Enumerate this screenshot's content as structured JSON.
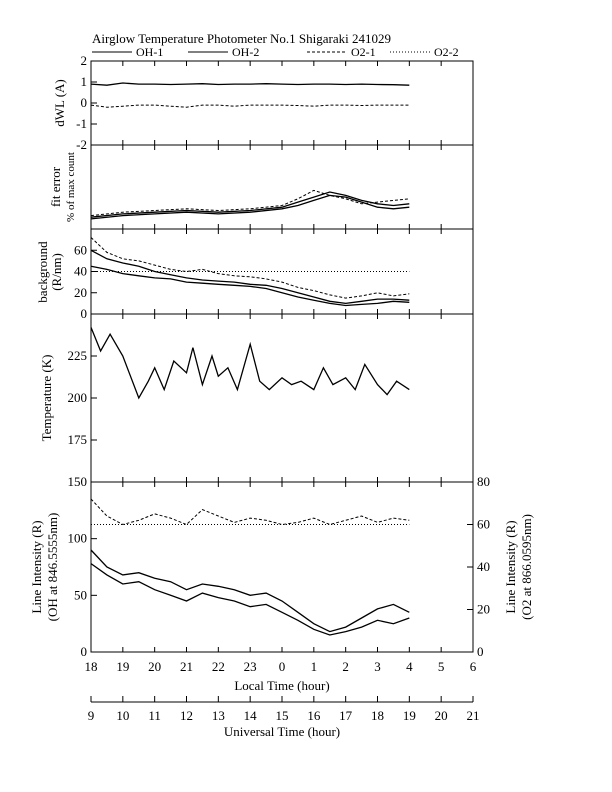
{
  "title": "Airglow Temperature Photometer No.1  Shigaraki  241029",
  "legend": [
    {
      "name": "OH-1",
      "dash": ""
    },
    {
      "name": "OH-2",
      "dash": ""
    },
    {
      "name": "O2-1",
      "dash": "3,2"
    },
    {
      "name": "O2-2",
      "dash": "1,2"
    }
  ],
  "chart_data": [
    {
      "type": "line",
      "panel": "dwl",
      "ylabel": "dWL (A)",
      "ylim": [
        -2,
        2
      ],
      "yticks": [
        -2,
        -1,
        0,
        1,
        2
      ],
      "series": [
        {
          "name": "OH-1",
          "x": [
            18.0,
            18.5,
            19.0,
            19.5,
            20.0,
            20.5,
            21.0,
            21.5,
            22.0,
            22.5,
            23.0,
            23.5,
            24.0,
            24.5,
            25.0,
            25.5,
            26.0,
            26.5,
            27.0,
            27.5,
            28.0
          ],
          "y": [
            0.9,
            0.85,
            0.95,
            0.9,
            0.9,
            0.88,
            0.9,
            0.92,
            0.88,
            0.9,
            0.9,
            0.92,
            0.9,
            0.88,
            0.9,
            0.9,
            0.88,
            0.9,
            0.88,
            0.87,
            0.85
          ]
        },
        {
          "name": "O2-1",
          "x": [
            18.0,
            18.5,
            19.0,
            19.5,
            20.0,
            20.5,
            21.0,
            21.5,
            22.0,
            22.5,
            23.0,
            23.5,
            24.0,
            24.5,
            25.0,
            25.5,
            26.0,
            26.5,
            27.0,
            27.5,
            28.0
          ],
          "y": [
            -0.1,
            -0.2,
            -0.15,
            -0.1,
            -0.1,
            -0.15,
            -0.2,
            -0.1,
            -0.1,
            -0.15,
            -0.1,
            -0.1,
            -0.1,
            -0.12,
            -0.15,
            -0.1,
            -0.1,
            -0.12,
            -0.1,
            -0.1,
            -0.1
          ]
        }
      ]
    },
    {
      "type": "line",
      "panel": "fiterr",
      "ylabel": "fit error",
      "ylabel2": "% of max count",
      "ylim": [
        0,
        5
      ],
      "series": [
        {
          "name": "OH-1",
          "x": [
            18.0,
            19.0,
            20.0,
            21.0,
            22.0,
            23.0,
            24.0,
            24.5,
            25.0,
            25.5,
            26.0,
            26.5,
            27.0,
            27.5,
            28.0
          ],
          "y": [
            0.6,
            0.8,
            0.9,
            1.0,
            0.9,
            1.0,
            1.2,
            1.4,
            1.7,
            2.0,
            1.9,
            1.6,
            1.3,
            1.2,
            1.3
          ]
        },
        {
          "name": "OH-2",
          "x": [
            18.0,
            19.0,
            20.0,
            21.0,
            22.0,
            23.0,
            24.0,
            24.5,
            25.0,
            25.5,
            26.0,
            26.5,
            27.0,
            27.5,
            28.0
          ],
          "y": [
            0.7,
            0.9,
            1.0,
            1.1,
            1.0,
            1.1,
            1.3,
            1.6,
            1.9,
            2.2,
            2.0,
            1.7,
            1.5,
            1.4,
            1.5
          ]
        },
        {
          "name": "O2-1",
          "x": [
            18.0,
            19.0,
            20.0,
            21.0,
            22.0,
            23.0,
            24.0,
            24.5,
            25.0,
            25.5,
            26.0,
            26.5,
            27.0,
            27.5,
            28.0
          ],
          "y": [
            0.8,
            1.0,
            1.1,
            1.2,
            1.1,
            1.2,
            1.4,
            1.8,
            2.3,
            2.0,
            1.8,
            1.5,
            1.6,
            1.7,
            1.8
          ]
        }
      ]
    },
    {
      "type": "line",
      "panel": "background",
      "ylabel": "background",
      "ylabel2": "(R/nm)",
      "ylim": [
        0,
        80
      ],
      "yticks": [
        0,
        20,
        40,
        60
      ],
      "series": [
        {
          "name": "OH-1",
          "x": [
            18.0,
            18.5,
            19.0,
            19.5,
            20.0,
            20.5,
            21.0,
            21.5,
            22.0,
            22.5,
            23.0,
            23.5,
            24.0,
            24.5,
            25.0,
            25.5,
            26.0,
            26.5,
            27.0,
            27.5,
            28.0
          ],
          "y": [
            45,
            42,
            38,
            36,
            34,
            33,
            30,
            29,
            28,
            27,
            26,
            24,
            20,
            16,
            13,
            10,
            8,
            9,
            10,
            12,
            11
          ]
        },
        {
          "name": "OH-2",
          "x": [
            18.0,
            18.5,
            19.0,
            19.5,
            20.0,
            20.5,
            21.0,
            21.5,
            22.0,
            22.5,
            23.0,
            23.5,
            24.0,
            24.5,
            25.0,
            25.5,
            26.0,
            26.5,
            27.0,
            27.5,
            28.0
          ],
          "y": [
            60,
            52,
            48,
            45,
            40,
            37,
            34,
            32,
            31,
            30,
            28,
            27,
            24,
            20,
            16,
            12,
            10,
            12,
            14,
            14,
            13
          ]
        },
        {
          "name": "O2-1",
          "x": [
            18.0,
            18.5,
            19.0,
            19.5,
            20.0,
            20.5,
            21.0,
            21.5,
            22.0,
            22.5,
            23.0,
            23.5,
            24.0,
            24.5,
            25.0,
            25.5,
            26.0,
            26.5,
            27.0,
            27.5,
            28.0
          ],
          "y": [
            72,
            58,
            52,
            50,
            46,
            42,
            40,
            42,
            38,
            36,
            35,
            33,
            30,
            25,
            22,
            18,
            15,
            17,
            20,
            17,
            19
          ]
        },
        {
          "name": "O2-2",
          "x": [
            18.0,
            28.0
          ],
          "y": [
            40,
            40
          ]
        }
      ]
    },
    {
      "type": "line",
      "panel": "temperature",
      "ylabel": "Temperature (K)",
      "ylim": [
        150,
        250
      ],
      "yticks": [
        175,
        200,
        225
      ],
      "series": [
        {
          "name": "OH-1",
          "x": [
            18.0,
            18.3,
            18.6,
            19.0,
            19.2,
            19.5,
            19.8,
            20.0,
            20.3,
            20.6,
            21.0,
            21.2,
            21.5,
            21.8,
            22.0,
            22.3,
            22.6,
            23.0,
            23.3,
            23.6,
            24.0,
            24.3,
            24.6,
            25.0,
            25.3,
            25.6,
            26.0,
            26.3,
            26.6,
            27.0,
            27.3,
            27.6,
            28.0
          ],
          "y": [
            242,
            228,
            238,
            225,
            215,
            200,
            210,
            218,
            205,
            222,
            215,
            230,
            208,
            225,
            213,
            218,
            205,
            232,
            210,
            205,
            212,
            208,
            210,
            205,
            218,
            208,
            212,
            205,
            220,
            208,
            202,
            210,
            205
          ]
        }
      ]
    },
    {
      "type": "line",
      "panel": "intensity",
      "ylabel": "Line Intensity (R)",
      "ylabel2": "(OH at 846.5555nm)",
      "ylabel_right": "Line Intensity (R)",
      "ylabel_right2": "(O2 at 866.0595nm)",
      "ylim": [
        0,
        150
      ],
      "yticks": [
        0,
        50,
        100,
        150
      ],
      "ylim_right": [
        0,
        80
      ],
      "yticks_right": [
        0,
        20,
        40,
        60,
        80
      ],
      "series": [
        {
          "name": "OH-1",
          "x": [
            18.0,
            18.5,
            19.0,
            19.5,
            20.0,
            20.5,
            21.0,
            21.5,
            22.0,
            22.5,
            23.0,
            23.5,
            24.0,
            24.5,
            25.0,
            25.5,
            26.0,
            26.5,
            27.0,
            27.5,
            28.0
          ],
          "y": [
            78,
            68,
            60,
            62,
            55,
            50,
            45,
            52,
            48,
            45,
            40,
            42,
            35,
            28,
            20,
            15,
            18,
            22,
            28,
            25,
            30
          ]
        },
        {
          "name": "OH-2",
          "x": [
            18.0,
            18.5,
            19.0,
            19.5,
            20.0,
            20.5,
            21.0,
            21.5,
            22.0,
            22.5,
            23.0,
            23.5,
            24.0,
            24.5,
            25.0,
            25.5,
            26.0,
            26.5,
            27.0,
            27.5,
            28.0
          ],
          "y": [
            90,
            75,
            68,
            70,
            65,
            62,
            55,
            60,
            58,
            55,
            50,
            52,
            45,
            35,
            25,
            18,
            22,
            30,
            38,
            42,
            35
          ]
        },
        {
          "name": "O2-1",
          "x": [
            18.0,
            18.5,
            19.0,
            19.5,
            20.0,
            20.5,
            21.0,
            21.5,
            22.0,
            22.5,
            23.0,
            23.5,
            24.0,
            24.5,
            25.0,
            25.5,
            26.0,
            26.5,
            27.0,
            27.5,
            28.0
          ],
          "y": [
            72,
            64,
            60,
            62,
            65,
            63,
            60,
            67,
            64,
            61,
            63,
            62,
            60,
            61,
            63,
            60,
            62,
            64,
            61,
            63,
            62
          ]
        },
        {
          "name": "O2-2",
          "x": [
            18.0,
            28.0
          ],
          "y": [
            60,
            60
          ]
        }
      ]
    }
  ],
  "x_axes": {
    "local": {
      "label": "Local Time (hour)",
      "ticks": [
        "18",
        "19",
        "20",
        "21",
        "22",
        "23",
        "0",
        "1",
        "2",
        "3",
        "4",
        "5",
        "6"
      ]
    },
    "universal": {
      "label": "Universal Time (hour)",
      "ticks": [
        "9",
        "10",
        "11",
        "12",
        "13",
        "14",
        "15",
        "16",
        "17",
        "18",
        "19",
        "20",
        "21"
      ]
    }
  }
}
